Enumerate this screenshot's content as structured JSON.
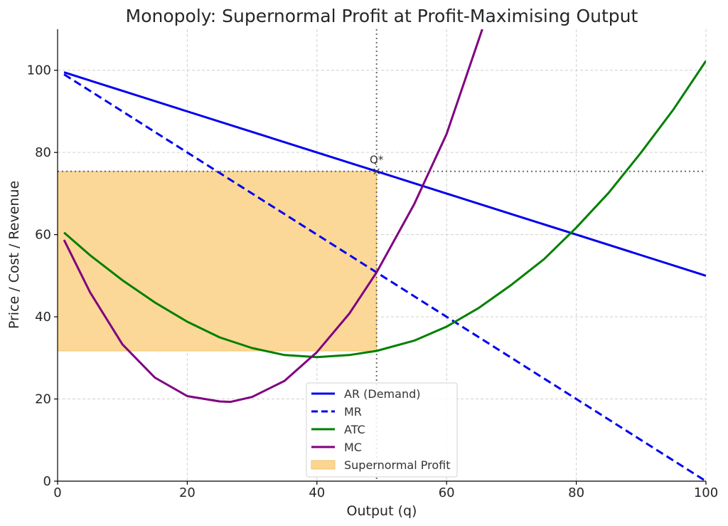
{
  "chart_data": {
    "type": "line",
    "title": "Monopoly: Supernormal Profit at Profit-Maximising Output",
    "xlabel": "Output (q)",
    "ylabel": "Price / Cost / Revenue",
    "xlim": [
      0,
      100
    ],
    "ylim": [
      0,
      110
    ],
    "xticks": [
      0,
      20,
      40,
      60,
      80,
      100
    ],
    "yticks": [
      0,
      20,
      40,
      60,
      80,
      100
    ],
    "grid": true,
    "legend_position": "bottom-center",
    "series": [
      {
        "name": "AR (Demand)",
        "color": "#0000ee",
        "style": "solid",
        "x": [
          1,
          10,
          20,
          30,
          40,
          49.2,
          60,
          70,
          80,
          90,
          100
        ],
        "y": [
          99.5,
          95,
          90,
          85,
          80,
          75.4,
          70,
          65,
          60,
          55,
          50
        ]
      },
      {
        "name": "MR",
        "color": "#0000ee",
        "style": "dashed",
        "x": [
          1,
          10,
          20,
          30,
          40,
          49.2,
          60,
          70,
          80,
          90,
          100
        ],
        "y": [
          99,
          90,
          80,
          70,
          60,
          50.8,
          40,
          30,
          20,
          10,
          0
        ]
      },
      {
        "name": "ATC",
        "color": "#008000",
        "style": "solid",
        "x": [
          1,
          5,
          10,
          15,
          20,
          25,
          30,
          35,
          40,
          45,
          49.2,
          55,
          60,
          65,
          70,
          75,
          80,
          85,
          90,
          95,
          100
        ],
        "y": [
          60.5,
          55,
          48.9,
          43.5,
          38.8,
          35,
          32.4,
          30.7,
          30.2,
          30.7,
          31.7,
          34.2,
          37.6,
          42.2,
          47.8,
          54,
          61.7,
          70.2,
          80,
          90.5,
          102.3
        ]
      },
      {
        "name": "MC",
        "color": "#800080",
        "style": "solid",
        "x": [
          1,
          5,
          10,
          15,
          20,
          25,
          26.7,
          30,
          35,
          40,
          45,
          49.2,
          55,
          60,
          65.5
        ],
        "y": [
          58.7,
          46,
          33.3,
          25.2,
          20.7,
          19.4,
          19.3,
          20.5,
          24.4,
          31.4,
          40.8,
          50.8,
          67.4,
          84.5,
          110
        ]
      }
    ],
    "profit_area": {
      "name": "Supernormal Profit",
      "color": "#fbd691",
      "x_range": [
        0,
        49.2
      ],
      "y_range": [
        31.7,
        75.4
      ]
    },
    "annotations": [
      {
        "text": "Q*",
        "x": 49.2,
        "y": 75.4,
        "marker": "×"
      }
    ],
    "reference_lines": {
      "vertical_x": 49.2,
      "horizontal_y": 75.4
    }
  }
}
